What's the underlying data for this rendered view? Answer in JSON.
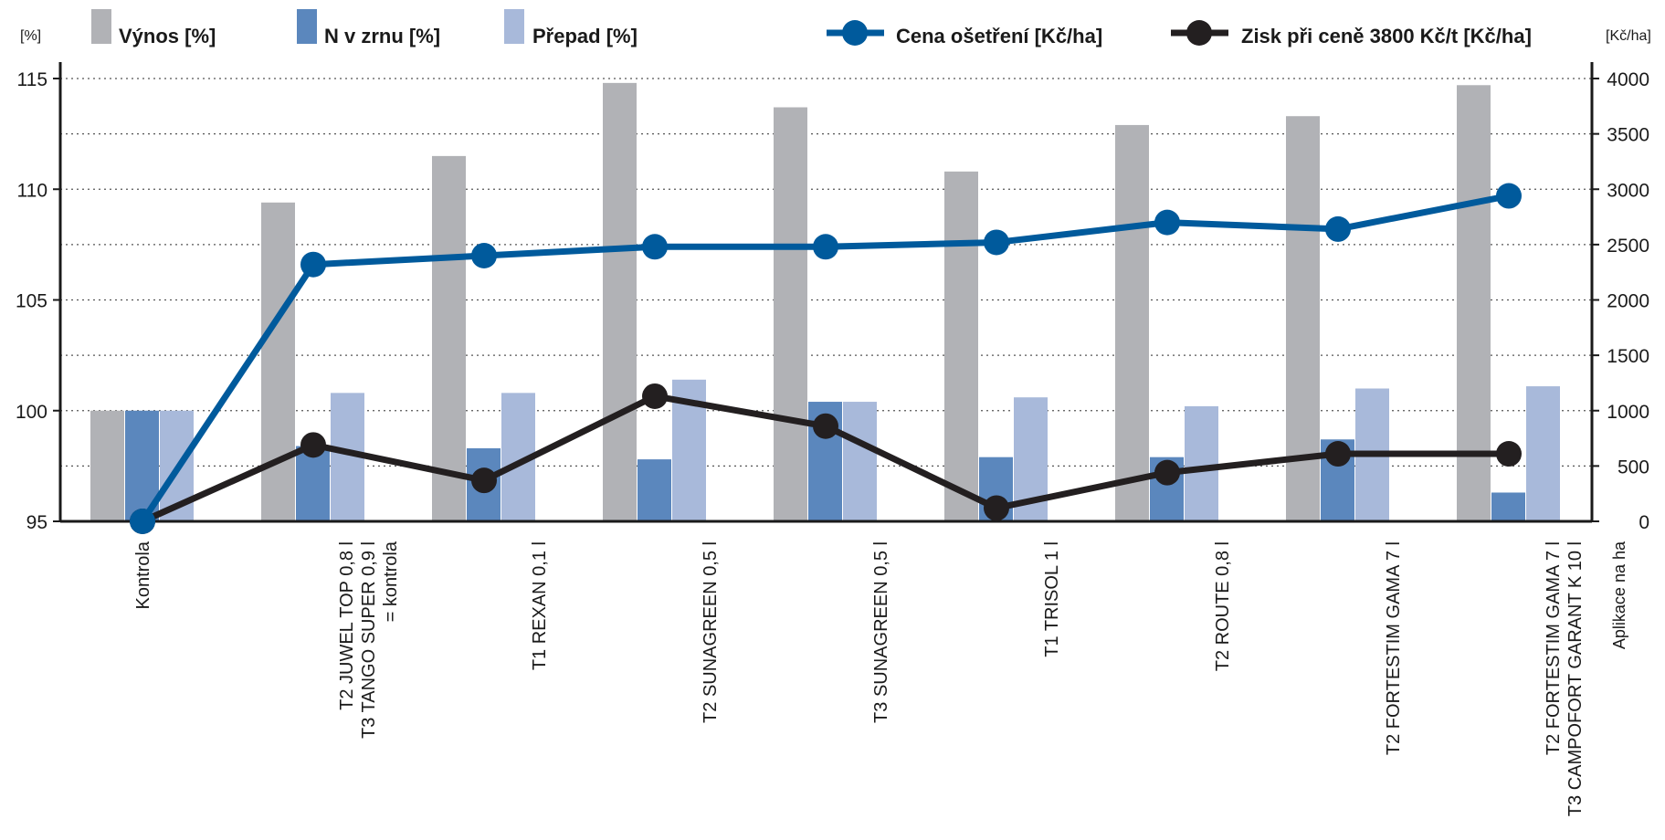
{
  "colors": {
    "vynos": "#b1b2b6",
    "n_v_zrnu": "#5b87bd",
    "prepad": "#a8b9da",
    "cena": "#005a9c",
    "zisk": "#231f20",
    "axis": "#1a1a1a",
    "grid": "#555555"
  },
  "chart_data": {
    "type": "bar",
    "left_unit": "[%]",
    "right_unit": "[Kč/ha]",
    "xlabel_note": "Aplikace na ha",
    "left_axis": {
      "ylim": [
        95,
        115
      ],
      "ticks": [
        95,
        100,
        105,
        110,
        115
      ],
      "grid_step": 2.5
    },
    "right_axis": {
      "ylim": [
        0,
        4000
      ],
      "ticks": [
        0,
        500,
        1000,
        1500,
        2000,
        2500,
        3000,
        3500,
        4000
      ]
    },
    "grid": true,
    "legend_position": "top",
    "categories": [
      [
        "Kontrola"
      ],
      [
        "T2 JUWEL TOP 0,8 l",
        "T3 TANGO SUPER 0,9 l",
        "= kontrola"
      ],
      [
        "T1 REXAN 0,1 l"
      ],
      [
        "T2 SUNAGREEN 0,5 l"
      ],
      [
        "T3 SUNAGREEN 0,5 l"
      ],
      [
        "T1 TRISOL 1 l"
      ],
      [
        "T2 ROUTE 0,8 l"
      ],
      [
        "T2 FORTESTIM GAMA 7 l"
      ],
      [
        "T2 FORTESTIM GAMA 7 l",
        "T3 CAMPOFORT GARANT K 10 l"
      ]
    ],
    "bar_series": [
      {
        "name": "Výnos [%]",
        "axis": "left",
        "values": [
          100,
          109.4,
          111.5,
          114.8,
          113.7,
          110.8,
          112.9,
          113.3,
          114.7
        ]
      },
      {
        "name": "N v zrnu [%]",
        "axis": "left",
        "values": [
          100,
          98.4,
          98.3,
          97.8,
          100.4,
          97.9,
          97.9,
          98.7,
          96.3
        ]
      },
      {
        "name": "Přepad [%]",
        "axis": "left",
        "values": [
          100,
          100.8,
          100.8,
          101.4,
          100.4,
          100.6,
          100.2,
          101.0,
          101.1
        ]
      }
    ],
    "line_series": [
      {
        "name": "Cena ošetření [Kč/ha]",
        "axis": "right",
        "values": [
          0,
          2320,
          2400,
          2480,
          2480,
          2520,
          2700,
          2640,
          2940
        ]
      },
      {
        "name": "Zisk při ceně 3800 Kč/t [Kč/ha]",
        "axis": "right",
        "values": [
          0,
          690,
          370,
          1130,
          860,
          120,
          440,
          610,
          610
        ]
      }
    ]
  }
}
